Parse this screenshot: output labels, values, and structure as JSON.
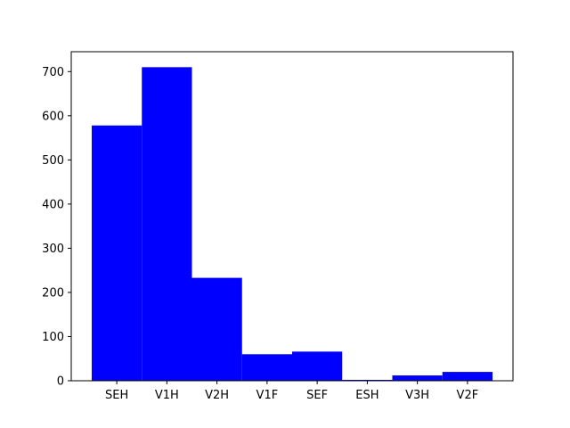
{
  "chart_data": {
    "type": "bar",
    "categories": [
      "SEH",
      "V1H",
      "V2H",
      "V1F",
      "SEF",
      "ESH",
      "V3H",
      "V2F"
    ],
    "values": [
      578,
      710,
      233,
      60,
      66,
      2,
      12,
      20
    ],
    "title": "",
    "xlabel": "",
    "ylabel": "",
    "ylim": [
      0,
      745
    ],
    "yticks": [
      0,
      100,
      200,
      300,
      400,
      500,
      600,
      700
    ],
    "bar_color": "#0000ff",
    "grid": false,
    "legend": "none"
  }
}
